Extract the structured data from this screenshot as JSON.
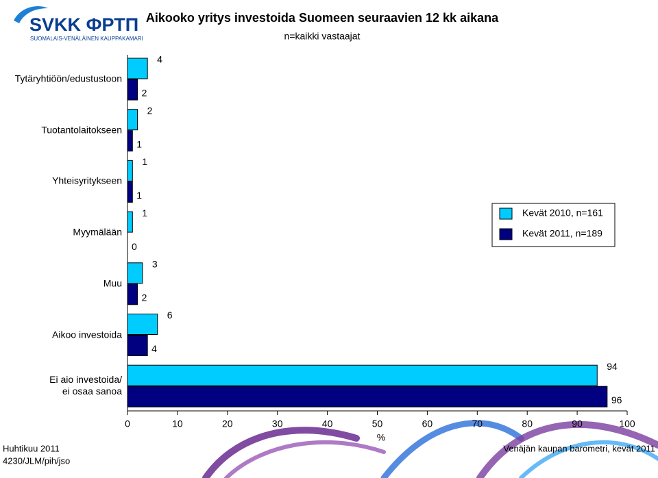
{
  "logo": {
    "name": "SVKK ФРТП",
    "subtitle": "SUOMALAIS-VENÄLÄINEN KAUPPAKAMARI"
  },
  "chart_data": {
    "type": "hbar",
    "title": "Aikooko yritys investoida Suomeen seuraavien 12 kk aikana",
    "subtitle": "n=kaikki vastaajat",
    "x_label": "%",
    "categories": [
      "Tytäryhtiöön/edustustoon",
      "Tuotantolaitokseen",
      "Yhteisyritykseen",
      "Myymälään",
      "Muu",
      "Aikoo investoida",
      "Ei aio investoida/\nei osaa sanoa"
    ],
    "series": [
      {
        "name": "Kevät 2010, n=161",
        "color": "#00ccff",
        "values": [
          4,
          2,
          1,
          1,
          3,
          6,
          94
        ]
      },
      {
        "name": "Kevät 2011, n=189",
        "color": "#000080",
        "values": [
          2,
          1,
          1,
          0,
          2,
          4,
          96
        ]
      }
    ],
    "xlim": [
      0,
      100
    ],
    "xticks": [
      0,
      10,
      20,
      30,
      40,
      50,
      60,
      70,
      80,
      90,
      100
    ],
    "legend": "right"
  },
  "footer": {
    "left": [
      "Huhtikuu 2011",
      "4230/JLM/pih/jso"
    ],
    "right": "Venäjän kaupan barometri, kevät 2011"
  }
}
